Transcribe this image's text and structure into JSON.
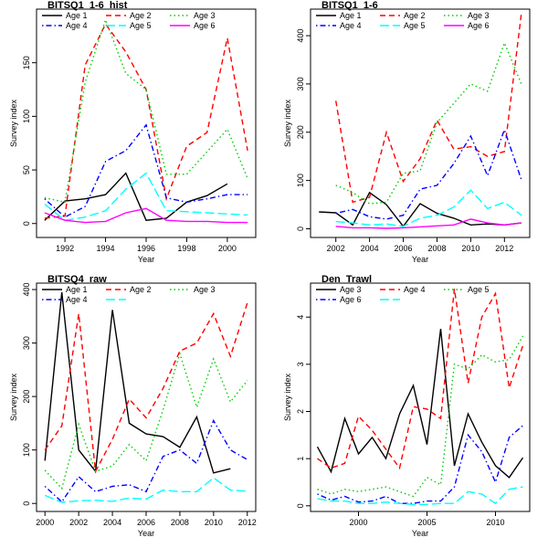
{
  "colors": {
    "black": "#000000",
    "red": "#ff0000",
    "green": "#00cd00",
    "blue": "#0000ff",
    "cyan": "#00ffff",
    "magenta": "#ff00ff"
  },
  "chart_data": [
    {
      "type": "line",
      "title": "BITSQ1_1-6_hist",
      "xlabel": "Year",
      "ylabel": "Survey index",
      "xlim": [
        1990.6,
        2001.4
      ],
      "ylim": [
        -13,
        200
      ],
      "xticks": [
        1992,
        1994,
        1996,
        1998,
        2000
      ],
      "yticks": [
        0,
        50,
        100,
        150
      ],
      "legend_position": "top",
      "legend": [
        {
          "label": "Age 1",
          "color": "black",
          "dash": "solid"
        },
        {
          "label": "Age 2",
          "color": "red",
          "dash": "dashed"
        },
        {
          "label": "Age 3",
          "color": "green",
          "dash": "dotted"
        },
        {
          "label": "Age 4",
          "color": "blue",
          "dash": "dotdash"
        },
        {
          "label": "Age 5",
          "color": "cyan",
          "dash": "longdash"
        },
        {
          "label": "Age 6",
          "color": "magenta",
          "dash": "solid"
        }
      ],
      "series": [
        {
          "name": "Age 1",
          "color": "black",
          "dash": "solid",
          "x": [
            1991,
            1992,
            1993,
            1994,
            1995,
            1996,
            1997,
            1998,
            1999,
            2000
          ],
          "y": [
            3,
            21,
            23,
            27,
            47,
            3,
            5,
            20,
            26,
            37
          ]
        },
        {
          "name": "Age 2",
          "color": "red",
          "dash": "dashed",
          "x": [
            1991,
            1992,
            1993,
            1994,
            1995,
            1996,
            1997,
            1998,
            1999,
            2000,
            2001
          ],
          "y": [
            5,
            7,
            148,
            186,
            160,
            125,
            23,
            72,
            85,
            173,
            68
          ]
        },
        {
          "name": "Age 3",
          "color": "green",
          "dash": "dotted",
          "x": [
            1991,
            1992,
            1993,
            1994,
            1995,
            1996,
            1997,
            1998,
            1999,
            2000,
            2001
          ],
          "y": [
            24,
            20,
            132,
            190,
            140,
            125,
            46,
            46,
            67,
            88,
            42
          ]
        },
        {
          "name": "Age 4",
          "color": "blue",
          "dash": "dotdash",
          "x": [
            1991,
            1992,
            1993,
            1994,
            1995,
            1996,
            1997,
            1998,
            1999,
            2000,
            2001
          ],
          "y": [
            23,
            6,
            16,
            58,
            68,
            92,
            24,
            20,
            23,
            27,
            27
          ]
        },
        {
          "name": "Age 5",
          "color": "cyan",
          "dash": "longdash",
          "x": [
            1991,
            1992,
            1993,
            1994,
            1995,
            1996,
            1997,
            1998,
            1999,
            2000,
            2001
          ],
          "y": [
            18,
            3,
            6,
            12,
            32,
            47,
            12,
            11,
            10,
            9,
            8
          ]
        },
        {
          "name": "Age 6",
          "color": "magenta",
          "dash": "solid",
          "x": [
            1991,
            1992,
            1993,
            1994,
            1995,
            1996,
            1997,
            1998,
            1999,
            2000,
            2001
          ],
          "y": [
            10,
            3,
            1,
            2,
            10,
            14,
            3,
            2,
            2,
            1,
            1
          ]
        }
      ]
    },
    {
      "type": "line",
      "title": "BITSQ1_1-6",
      "xlabel": "Year",
      "ylabel": "Survey index",
      "xlim": [
        2000.5,
        2013.5
      ],
      "ylim": [
        -18,
        455
      ],
      "xticks": [
        2002,
        2004,
        2006,
        2008,
        2010,
        2012
      ],
      "yticks": [
        0,
        100,
        200,
        300,
        400
      ],
      "legend_position": "top",
      "legend": [
        {
          "label": "Age 1",
          "color": "black",
          "dash": "solid"
        },
        {
          "label": "Age 2",
          "color": "red",
          "dash": "dashed"
        },
        {
          "label": "Age 3",
          "color": "green",
          "dash": "dotted"
        },
        {
          "label": "Age 4",
          "color": "blue",
          "dash": "dotdash"
        },
        {
          "label": "Age 5",
          "color": "cyan",
          "dash": "longdash"
        },
        {
          "label": "Age 6",
          "color": "magenta",
          "dash": "solid"
        }
      ],
      "series": [
        {
          "name": "Age 1",
          "color": "black",
          "dash": "solid",
          "x": [
            2001,
            2002,
            2003,
            2004,
            2005,
            2006,
            2007,
            2008,
            2009,
            2010,
            2011,
            2012,
            2013
          ],
          "y": [
            35,
            33,
            8,
            75,
            50,
            5,
            52,
            32,
            22,
            8,
            10,
            8,
            12
          ]
        },
        {
          "name": "Age 2",
          "color": "red",
          "dash": "dashed",
          "x": [
            2002,
            2003,
            2004,
            2005,
            2006,
            2007,
            2008,
            2009,
            2010,
            2011,
            2012,
            2013
          ],
          "y": [
            265,
            55,
            65,
            200,
            98,
            145,
            225,
            165,
            170,
            150,
            160,
            445
          ]
        },
        {
          "name": "Age 3",
          "color": "green",
          "dash": "dotted",
          "x": [
            2002,
            2003,
            2004,
            2005,
            2006,
            2007,
            2008,
            2009,
            2010,
            2011,
            2012,
            2013
          ],
          "y": [
            90,
            75,
            52,
            55,
            115,
            120,
            220,
            260,
            300,
            285,
            385,
            300
          ]
        },
        {
          "name": "Age 4",
          "color": "blue",
          "dash": "dotdash",
          "x": [
            2002,
            2003,
            2004,
            2005,
            2006,
            2007,
            2008,
            2009,
            2010,
            2011,
            2012,
            2013
          ],
          "y": [
            32,
            40,
            25,
            20,
            28,
            82,
            90,
            135,
            192,
            110,
            205,
            102
          ]
        },
        {
          "name": "Age 5",
          "color": "cyan",
          "dash": "longdash",
          "x": [
            2002,
            2003,
            2004,
            2005,
            2006,
            2007,
            2008,
            2009,
            2010,
            2011,
            2012,
            2013
          ],
          "y": [
            15,
            12,
            8,
            10,
            5,
            22,
            28,
            45,
            80,
            42,
            55,
            28
          ]
        },
        {
          "name": "Age 6",
          "color": "magenta",
          "dash": "solid",
          "x": [
            2002,
            2003,
            2004,
            2005,
            2006,
            2007,
            2008,
            2009,
            2010,
            2011,
            2012,
            2013
          ],
          "y": [
            5,
            2,
            2,
            1,
            2,
            4,
            6,
            8,
            20,
            12,
            8,
            12
          ]
        }
      ]
    },
    {
      "type": "line",
      "title": "BITSQ4_raw",
      "xlabel": "Year",
      "ylabel": "Survey index",
      "xlim": [
        1999.5,
        2012.5
      ],
      "ylim": [
        -15,
        412
      ],
      "xticks": [
        2000,
        2002,
        2004,
        2006,
        2008,
        2010,
        2012
      ],
      "yticks": [
        0,
        100,
        200,
        300,
        400
      ],
      "legend_position": "top",
      "legend": [
        {
          "label": "Age 1",
          "color": "black",
          "dash": "solid"
        },
        {
          "label": "Age 2",
          "color": "red",
          "dash": "dashed"
        },
        {
          "label": "Age 3",
          "color": "green",
          "dash": "dotted"
        },
        {
          "label": "Age 4",
          "color": "blue",
          "dash": "dotdash"
        },
        {
          "label": "",
          "color": "cyan",
          "dash": "longdash"
        }
      ],
      "series": [
        {
          "name": "Age 1",
          "color": "black",
          "dash": "solid",
          "x": [
            2000,
            2001,
            2002,
            2003,
            2004,
            2005,
            2006,
            2007,
            2008,
            2009,
            2010,
            2011
          ],
          "y": [
            80,
            395,
            100,
            60,
            362,
            150,
            130,
            125,
            105,
            162,
            57,
            65
          ]
        },
        {
          "name": "Age 2",
          "color": "red",
          "dash": "dashed",
          "x": [
            2000,
            2001,
            2002,
            2003,
            2004,
            2005,
            2006,
            2007,
            2008,
            2009,
            2010,
            2011,
            2012
          ],
          "y": [
            100,
            145,
            355,
            60,
            120,
            195,
            160,
            215,
            285,
            300,
            355,
            275,
            375
          ]
        },
        {
          "name": "Age 3",
          "color": "green",
          "dash": "dotted",
          "x": [
            2000,
            2001,
            2002,
            2003,
            2004,
            2005,
            2006,
            2007,
            2008,
            2009,
            2010,
            2011,
            2012
          ],
          "y": [
            62,
            28,
            148,
            60,
            70,
            110,
            80,
            175,
            280,
            180,
            270,
            190,
            230
          ]
        },
        {
          "name": "Age 4",
          "color": "blue",
          "dash": "dotdash",
          "x": [
            2000,
            2001,
            2002,
            2003,
            2004,
            2005,
            2006,
            2007,
            2008,
            2009,
            2010,
            2011,
            2012
          ],
          "y": [
            32,
            3,
            50,
            22,
            32,
            35,
            22,
            88,
            100,
            75,
            155,
            100,
            82
          ]
        },
        {
          "name": "",
          "color": "cyan",
          "dash": "longdash",
          "x": [
            2000,
            2001,
            2002,
            2003,
            2004,
            2005,
            2006,
            2007,
            2008,
            2009,
            2010,
            2011,
            2012
          ],
          "y": [
            15,
            2,
            5,
            6,
            4,
            10,
            8,
            25,
            22,
            22,
            48,
            25,
            23
          ]
        }
      ]
    },
    {
      "type": "line",
      "title": "Den_Trawl",
      "xlabel": "Year",
      "ylabel": "Survey index",
      "xlim": [
        1996.5,
        2012.5
      ],
      "ylim": [
        -0.12,
        4.72
      ],
      "xticks": [
        2000,
        2005,
        2010
      ],
      "yticks": [
        0,
        1,
        2,
        3,
        4
      ],
      "legend_position": "top",
      "legend": [
        {
          "label": "Age 3",
          "color": "black",
          "dash": "solid"
        },
        {
          "label": "Age 4",
          "color": "red",
          "dash": "dashed"
        },
        {
          "label": "Age 5",
          "color": "green",
          "dash": "dotted"
        },
        {
          "label": "Age 6",
          "color": "blue",
          "dash": "dotdash"
        },
        {
          "label": "",
          "color": "cyan",
          "dash": "longdash"
        }
      ],
      "series": [
        {
          "name": "Age 3",
          "color": "black",
          "dash": "solid",
          "x": [
            1997,
            1998,
            1999,
            2000,
            2001,
            2002,
            2003,
            2004,
            2005,
            2006,
            2007,
            2008,
            2009,
            2010,
            2011,
            2012
          ],
          "y": [
            1.25,
            0.72,
            1.85,
            1.1,
            1.45,
            1.0,
            1.95,
            2.55,
            1.3,
            3.75,
            0.85,
            1.95,
            1.35,
            0.85,
            0.6,
            1.02
          ]
        },
        {
          "name": "Age 4",
          "color": "red",
          "dash": "dashed",
          "x": [
            1997,
            1998,
            1999,
            2000,
            2001,
            2002,
            2003,
            2004,
            2005,
            2006,
            2007,
            2008,
            2009,
            2010,
            2011,
            2012
          ],
          "y": [
            1.0,
            0.8,
            0.9,
            1.9,
            1.6,
            1.2,
            0.8,
            2.1,
            2.05,
            1.85,
            4.6,
            2.6,
            4.0,
            4.5,
            2.5,
            3.4
          ]
        },
        {
          "name": "Age 5",
          "color": "green",
          "dash": "dotted",
          "x": [
            1997,
            1998,
            1999,
            2000,
            2001,
            2002,
            2003,
            2004,
            2005,
            2006,
            2007,
            2008,
            2009,
            2010,
            2011,
            2012
          ],
          "y": [
            0.35,
            0.25,
            0.35,
            0.3,
            0.35,
            0.4,
            0.3,
            0.2,
            0.6,
            0.45,
            3.0,
            2.9,
            3.2,
            3.05,
            3.1,
            3.6
          ]
        },
        {
          "name": "Age 6",
          "color": "blue",
          "dash": "dotdash",
          "x": [
            1997,
            1998,
            1999,
            2000,
            2001,
            2002,
            2003,
            2004,
            2005,
            2006,
            2007,
            2008,
            2009,
            2010,
            2011,
            2012
          ],
          "y": [
            0.25,
            0.12,
            0.2,
            0.08,
            0.1,
            0.2,
            0.05,
            0.05,
            0.1,
            0.1,
            0.4,
            1.5,
            1.15,
            0.5,
            1.45,
            1.7
          ]
        },
        {
          "name": "",
          "color": "cyan",
          "dash": "longdash",
          "x": [
            1997,
            1998,
            1999,
            2000,
            2001,
            2002,
            2003,
            2004,
            2005,
            2006,
            2007,
            2008,
            2009,
            2010,
            2011,
            2012
          ],
          "y": [
            0.15,
            0.1,
            0.1,
            0.05,
            0.05,
            0.08,
            0.05,
            0.03,
            0.03,
            0.05,
            0.05,
            0.3,
            0.25,
            0.05,
            0.35,
            0.4
          ]
        }
      ]
    }
  ]
}
